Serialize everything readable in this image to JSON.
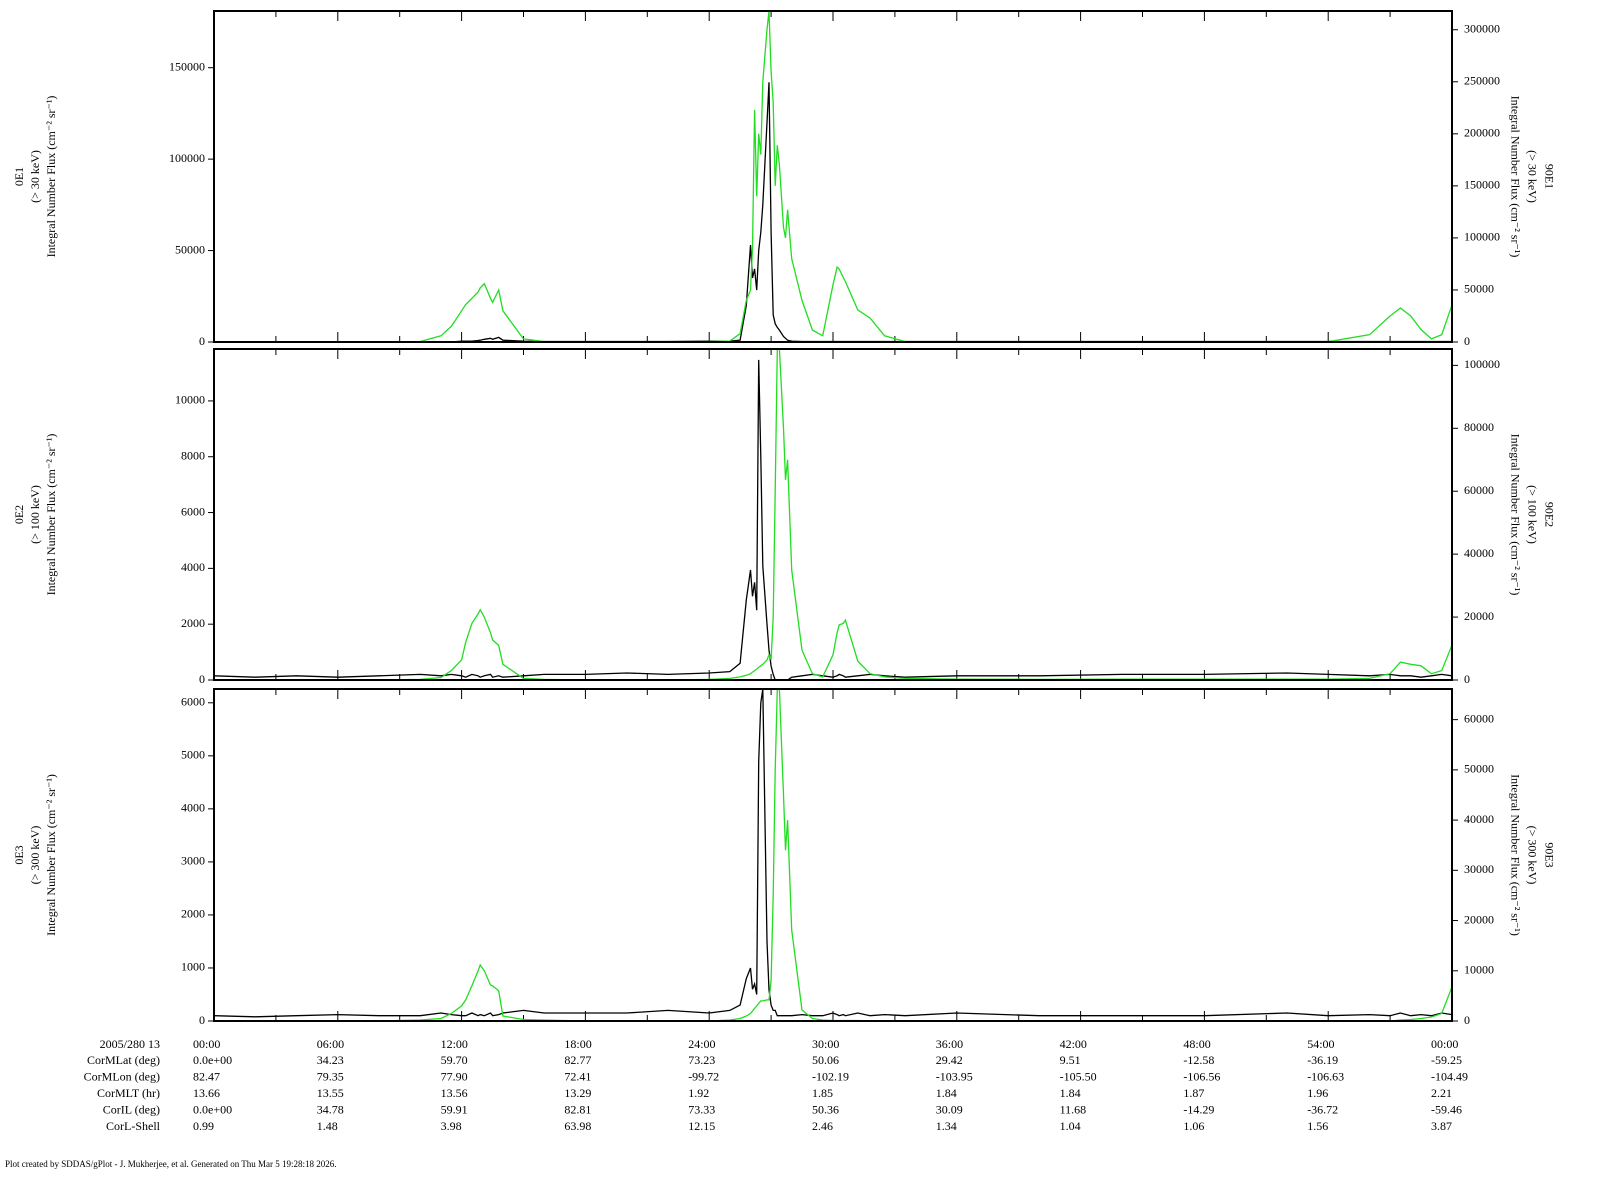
{
  "chart_data": [
    {
      "type": "line",
      "ylabel": [
        "0E1",
        "(> 30 keV)",
        "Integral Number Flux (cm⁻² sr⁻¹)"
      ],
      "y2label": [
        "90E1",
        "(> 30 keV)",
        "Integral Number Flux (cm⁻² sr⁻¹)"
      ],
      "x": [
        0,
        2,
        4,
        6,
        8,
        10,
        11,
        11.5,
        12,
        12.2,
        12.5,
        12.8,
        12.9,
        13.1,
        13.4,
        13.5,
        13.8,
        14,
        15,
        16,
        18,
        20,
        22,
        24,
        25,
        25.5,
        25.8,
        26,
        26.1,
        26.2,
        26.3,
        26.4,
        26.5,
        26.6,
        26.8,
        26.9,
        27,
        27.1,
        27.2,
        27.3,
        27.4,
        27.6,
        27.7,
        27.8,
        28,
        28.5,
        29,
        29.5,
        30,
        30.2,
        30.3,
        30.5,
        30.6,
        31.2,
        31.8,
        32.5,
        33.5,
        36,
        40,
        44,
        48,
        52,
        54,
        56,
        57,
        57.5,
        58,
        58.5,
        59,
        59.5,
        60
      ],
      "xlim": [
        0,
        60
      ],
      "xticks": [
        0,
        3,
        6,
        9,
        12,
        15,
        18,
        21,
        24,
        27,
        30,
        33,
        36,
        39,
        42,
        45,
        48,
        51,
        54,
        57,
        60
      ],
      "ylim": [
        0,
        181000
      ],
      "yticks": [
        0,
        50000,
        100000,
        150000
      ],
      "y2lim": [
        0,
        318000
      ],
      "y2ticks": [
        0,
        50000,
        100000,
        150000,
        200000,
        250000,
        300000
      ],
      "series": [
        {
          "color": "#000000",
          "values": [
            0,
            0,
            0,
            0,
            0,
            0,
            0,
            0,
            500,
            500,
            500,
            800,
            1000,
            1500,
            2000,
            1500,
            2500,
            1000,
            500,
            300,
            300,
            300,
            300,
            500,
            500,
            1000,
            20000,
            53000,
            35000,
            40000,
            28400,
            50000,
            60000,
            75000,
            120000,
            142000,
            60000,
            14800,
            10000,
            8000,
            6500,
            3000,
            2000,
            1000,
            500,
            300,
            300,
            300,
            300,
            300,
            300,
            300,
            300,
            300,
            300,
            300,
            300,
            300,
            300,
            300,
            300,
            300,
            300,
            300,
            300,
            300,
            300,
            300,
            300,
            300,
            300
          ]
        },
        {
          "color": "#22dd22",
          "axis": "y2",
          "values": [
            0,
            0,
            0,
            0,
            0,
            500,
            6000,
            15000,
            30000,
            36000,
            42000,
            48000,
            52000,
            56000,
            42000,
            38000,
            50000,
            30000,
            3000,
            500,
            200,
            0,
            0,
            500,
            1000,
            8000,
            40000,
            50000,
            90000,
            223000,
            140000,
            200000,
            180000,
            250000,
            300000,
            318000,
            260000,
            230000,
            150000,
            189000,
            170000,
            110000,
            100000,
            127000,
            80000,
            40000,
            11500,
            6000,
            55000,
            72000,
            70000,
            62000,
            58000,
            30800,
            23000,
            6000,
            500,
            0,
            0,
            0,
            0,
            0,
            300,
            7000,
            25000,
            32700,
            25000,
            12000,
            3000,
            7000,
            35600
          ]
        }
      ]
    },
    {
      "type": "line",
      "ylabel": [
        "0E2",
        "(> 100 keV)",
        "Integral Number Flux (cm⁻² sr⁻¹)"
      ],
      "y2label": [
        "90E2",
        "(> 100 keV)",
        "Integral Number Flux (cm⁻² sr⁻¹)"
      ],
      "x": [
        0,
        2,
        4,
        6,
        8,
        10,
        11,
        11.5,
        12,
        12.2,
        12.5,
        12.8,
        12.9,
        13.1,
        13.4,
        13.5,
        13.8,
        14,
        15,
        16,
        18,
        20,
        22,
        24,
        25,
        25.5,
        25.8,
        26,
        26.1,
        26.2,
        26.3,
        26.4,
        26.5,
        26.6,
        26.8,
        26.9,
        27,
        27.1,
        27.2,
        27.3,
        27.4,
        27.6,
        27.7,
        27.8,
        28,
        28.5,
        29,
        29.5,
        30,
        30.2,
        30.3,
        30.5,
        30.6,
        31.2,
        31.8,
        32.5,
        33.5,
        36,
        40,
        44,
        48,
        52,
        54,
        56,
        57,
        57.5,
        58,
        58.5,
        59,
        59.5,
        60
      ],
      "xlim": [
        0,
        60
      ],
      "xticks": [
        0,
        3,
        6,
        9,
        12,
        15,
        18,
        21,
        24,
        27,
        30,
        33,
        36,
        39,
        42,
        45,
        48,
        51,
        54,
        57,
        60
      ],
      "ylim": [
        0,
        11860
      ],
      "yticks": [
        0,
        2000,
        4000,
        6000,
        8000,
        10000
      ],
      "y2lim": [
        0,
        105200
      ],
      "y2ticks": [
        0,
        20000,
        40000,
        60000,
        80000,
        100000
      ],
      "series": [
        {
          "color": "#000000",
          "values": [
            150,
            100,
            150,
            100,
            150,
            200,
            150,
            200,
            150,
            100,
            200,
            150,
            100,
            150,
            200,
            100,
            150,
            100,
            150,
            200,
            200,
            250,
            200,
            250,
            300,
            600,
            2870,
            3940,
            3000,
            3500,
            2500,
            11470,
            8000,
            4090,
            2000,
            1075,
            500,
            200,
            0,
            0,
            0,
            0,
            0,
            0,
            100,
            150,
            200,
            150,
            100,
            150,
            200,
            150,
            100,
            150,
            200,
            150,
            100,
            150,
            150,
            200,
            200,
            250,
            200,
            150,
            200,
            150,
            150,
            100,
            150,
            200,
            150
          ]
        },
        {
          "color": "#22dd22",
          "axis": "y2",
          "values": [
            0,
            0,
            0,
            0,
            0,
            200,
            800,
            3000,
            6400,
            12000,
            18000,
            21000,
            22300,
            20000,
            15000,
            12700,
            11000,
            5000,
            500,
            200,
            0,
            0,
            0,
            200,
            500,
            1000,
            1500,
            2000,
            2500,
            3000,
            3500,
            4000,
            4500,
            5000,
            6400,
            8000,
            6400,
            20000,
            60000,
            105200,
            105200,
            80000,
            63600,
            70000,
            35000,
            9500,
            2000,
            1000,
            8000,
            15000,
            17500,
            18000,
            19000,
            6000,
            2000,
            1000,
            500,
            300,
            200,
            300,
            300,
            300,
            300,
            500,
            2000,
            5700,
            5000,
            4500,
            2000,
            3000,
            11100
          ]
        }
      ]
    },
    {
      "type": "line",
      "ylabel": [
        "0E3",
        "(> 300 keV)",
        "Integral Number Flux (cm⁻² sr⁻¹)"
      ],
      "y2label": [
        "90E3",
        "(> 300 keV)",
        "Integral Number Flux (cm⁻² sr⁻¹)"
      ],
      "x": [
        0,
        2,
        4,
        6,
        8,
        10,
        11,
        11.5,
        12,
        12.2,
        12.5,
        12.8,
        12.9,
        13.1,
        13.4,
        13.5,
        13.8,
        14,
        15,
        16,
        18,
        20,
        22,
        24,
        25,
        25.5,
        25.8,
        26,
        26.1,
        26.2,
        26.3,
        26.4,
        26.5,
        26.6,
        26.8,
        26.9,
        27,
        27.1,
        27.2,
        27.3,
        27.4,
        27.6,
        27.7,
        27.8,
        28,
        28.5,
        29,
        29.5,
        30,
        30.2,
        30.3,
        30.5,
        30.6,
        31.2,
        31.8,
        32.5,
        33.5,
        36,
        40,
        44,
        48,
        52,
        54,
        56,
        57,
        57.5,
        58,
        58.5,
        59,
        59.5,
        60
      ],
      "xlim": [
        0,
        60
      ],
      "xticks": [
        0,
        3,
        6,
        9,
        12,
        15,
        18,
        21,
        24,
        27,
        30,
        33,
        36,
        39,
        42,
        45,
        48,
        51,
        54,
        57,
        60
      ],
      "ylim": [
        0,
        6260
      ],
      "yticks": [
        0,
        1000,
        2000,
        3000,
        4000,
        5000,
        6000
      ],
      "y2lim": [
        0,
        66100
      ],
      "y2ticks": [
        0,
        10000,
        20000,
        30000,
        40000,
        50000,
        60000
      ],
      "series": [
        {
          "color": "#000000",
          "values": [
            100,
            80,
            100,
            120,
            100,
            100,
            150,
            120,
            100,
            100,
            150,
            100,
            120,
            100,
            150,
            100,
            120,
            150,
            200,
            150,
            150,
            150,
            200,
            150,
            200,
            300,
            800,
            1000,
            600,
            700,
            500,
            4890,
            6000,
            6260,
            1500,
            585,
            300,
            200,
            200,
            100,
            100,
            100,
            100,
            100,
            100,
            120,
            100,
            100,
            150,
            120,
            100,
            120,
            100,
            150,
            100,
            120,
            100,
            150,
            100,
            100,
            100,
            150,
            100,
            120,
            100,
            150,
            100,
            120,
            100,
            150,
            120
          ]
        },
        {
          "color": "#22dd22",
          "axis": "y2",
          "values": [
            0,
            0,
            0,
            0,
            0,
            200,
            500,
            1500,
            3000,
            4200,
            7000,
            10000,
            11150,
            10000,
            7170,
            7000,
            6000,
            1000,
            300,
            200,
            0,
            0,
            0,
            0,
            200,
            500,
            1000,
            1500,
            2000,
            2500,
            3000,
            3500,
            4000,
            4000,
            4200,
            4200,
            8000,
            25000,
            50000,
            66100,
            66100,
            45000,
            34000,
            40000,
            18100,
            2200,
            500,
            200,
            100,
            100,
            100,
            100,
            100,
            100,
            0,
            0,
            0,
            0,
            0,
            0,
            0,
            0,
            0,
            0,
            0,
            200,
            300,
            500,
            800,
            1500,
            6800
          ]
        }
      ]
    }
  ],
  "ephemeris": {
    "rows": [
      {
        "label": "2005/280 13",
        "values": [
          "00:00",
          "06:00",
          "12:00",
          "18:00",
          "24:00",
          "30:00",
          "36:00",
          "42:00",
          "48:00",
          "54:00",
          "00:00"
        ]
      },
      {
        "label": "CorMLat (deg)",
        "values": [
          "0.0e+00",
          "34.23",
          "59.70",
          "82.77",
          "73.23",
          "50.06",
          "29.42",
          "9.51",
          "-12.58",
          "-36.19",
          "-59.25"
        ]
      },
      {
        "label": "CorMLon (deg)",
        "values": [
          "82.47",
          "79.35",
          "77.90",
          "72.41",
          "-99.72",
          "-102.19",
          "-103.95",
          "-105.50",
          "-106.56",
          "-106.63",
          "-104.49"
        ]
      },
      {
        "label": "CorMLT (hr)",
        "values": [
          "13.66",
          "13.55",
          "13.56",
          "13.29",
          "1.92",
          "1.85",
          "1.84",
          "1.84",
          "1.87",
          "1.96",
          "2.21"
        ]
      },
      {
        "label": "CorIL (deg)",
        "values": [
          "0.0e+00",
          "34.78",
          "59.91",
          "82.81",
          "73.33",
          "50.36",
          "30.09",
          "11.68",
          "-14.29",
          "-36.72",
          "-59.46"
        ]
      },
      {
        "label": "CorL-Shell",
        "values": [
          "0.99",
          "1.48",
          "3.98",
          "63.98",
          "12.15",
          "2.46",
          "1.34",
          "1.04",
          "1.06",
          "1.56",
          "3.87"
        ]
      }
    ]
  },
  "footer": "Plot created by SDDAS/gPlot - J. Mukherjee, et al.  Generated on Thu Mar 5 19:28:18 2026."
}
